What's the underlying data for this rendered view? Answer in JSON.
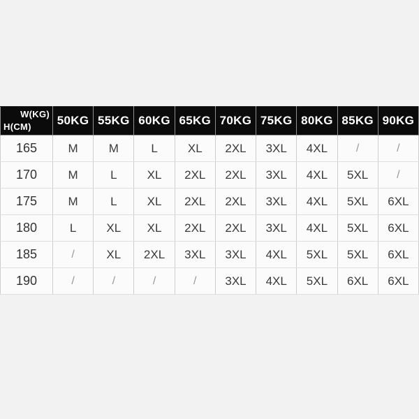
{
  "chart_data": {
    "type": "table",
    "corner_top_right": "W(KG)",
    "corner_bottom_left": "H(CM)",
    "columns": [
      "50KG",
      "55KG",
      "60KG",
      "65KG",
      "70KG",
      "75KG",
      "80KG",
      "85KG",
      "90KG"
    ],
    "rows": [
      {
        "height": "165",
        "sizes": [
          "M",
          "M",
          "L",
          "XL",
          "2XL",
          "3XL",
          "4XL",
          "/",
          "/"
        ]
      },
      {
        "height": "170",
        "sizes": [
          "M",
          "L",
          "XL",
          "2XL",
          "2XL",
          "3XL",
          "4XL",
          "5XL",
          "/"
        ]
      },
      {
        "height": "175",
        "sizes": [
          "M",
          "L",
          "XL",
          "2XL",
          "2XL",
          "3XL",
          "4XL",
          "5XL",
          "6XL"
        ]
      },
      {
        "height": "180",
        "sizes": [
          "L",
          "XL",
          "XL",
          "2XL",
          "2XL",
          "3XL",
          "4XL",
          "5XL",
          "6XL"
        ]
      },
      {
        "height": "185",
        "sizes": [
          "/",
          "XL",
          "2XL",
          "3XL",
          "3XL",
          "4XL",
          "5XL",
          "5XL",
          "6XL"
        ]
      },
      {
        "height": "190",
        "sizes": [
          "/",
          "/",
          "/",
          "/",
          "3XL",
          "4XL",
          "5XL",
          "6XL",
          "6XL"
        ]
      }
    ],
    "unavailable_marker": "/",
    "colors": {
      "header_bg": "#0b0b0b",
      "header_text": "#ffffff",
      "cell_bg": "#fbfbfb",
      "page_bg": "#f2f2f3",
      "body_text": "#3a3a3a",
      "slash_text": "#989898",
      "border": "#cccccc"
    }
  }
}
